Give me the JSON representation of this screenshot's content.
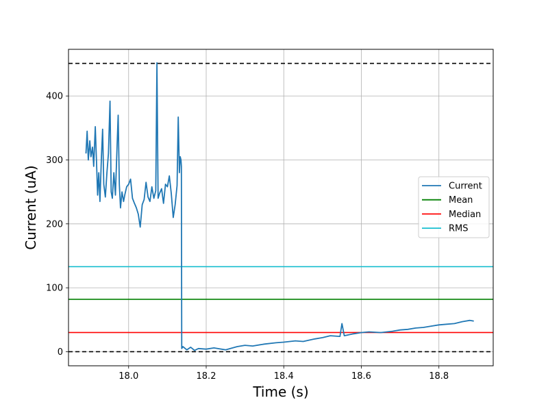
{
  "chart_data": {
    "type": "line",
    "xlabel": "Time (s)",
    "ylabel": "Current (uA)",
    "xlim": [
      17.845,
      18.94
    ],
    "ylim": [
      -22,
      473
    ],
    "xticks": [
      18.0,
      18.2,
      18.4,
      18.6,
      18.8
    ],
    "xtick_labels": [
      "18.0",
      "18.2",
      "18.4",
      "18.6",
      "18.8"
    ],
    "yticks": [
      0,
      100,
      200,
      300,
      400
    ],
    "ytick_labels": [
      "0",
      "100",
      "200",
      "300",
      "400"
    ],
    "grid": true,
    "legend_position": "center-right",
    "series": [
      {
        "name": "Current",
        "color": "#1f77b4",
        "style": "solid",
        "x": [
          17.89,
          17.893,
          17.896,
          17.9,
          17.903,
          17.907,
          17.91,
          17.914,
          17.917,
          17.92,
          17.923,
          17.926,
          17.93,
          17.933,
          17.936,
          17.94,
          17.944,
          17.948,
          17.952,
          17.955,
          17.958,
          17.962,
          17.966,
          17.97,
          17.973,
          17.976,
          17.979,
          17.983,
          17.987,
          17.99,
          17.995,
          18.0,
          18.005,
          18.01,
          18.015,
          18.02,
          18.025,
          18.03,
          18.035,
          18.04,
          18.045,
          18.05,
          18.055,
          18.06,
          18.065,
          18.07,
          18.073,
          18.076,
          18.08,
          18.085,
          18.09,
          18.095,
          18.1,
          18.105,
          18.11,
          18.115,
          18.12,
          18.125,
          18.128,
          18.131,
          18.133,
          18.135,
          18.136,
          18.137,
          18.14,
          18.15,
          18.16,
          18.17,
          18.18,
          18.2,
          18.22,
          18.25,
          18.28,
          18.3,
          18.32,
          18.35,
          18.38,
          18.4,
          18.43,
          18.45,
          18.48,
          18.5,
          18.52,
          18.545,
          18.55,
          18.556,
          18.58,
          18.6,
          18.62,
          18.65,
          18.68,
          18.7,
          18.72,
          18.74,
          18.76,
          18.78,
          18.8,
          18.82,
          18.84,
          18.86,
          18.88,
          18.89
        ],
        "y": [
          310,
          345,
          300,
          330,
          305,
          320,
          290,
          352,
          300,
          245,
          280,
          235,
          305,
          348,
          262,
          242,
          280,
          310,
          392,
          250,
          240,
          280,
          245,
          318,
          370,
          262,
          225,
          250,
          235,
          245,
          258,
          262,
          270,
          240,
          232,
          225,
          215,
          195,
          230,
          238,
          265,
          242,
          235,
          258,
          240,
          252,
          452,
          240,
          248,
          255,
          232,
          262,
          258,
          275,
          248,
          210,
          230,
          260,
          367,
          280,
          305,
          300,
          290,
          5,
          8,
          3,
          7,
          2,
          5,
          4,
          6,
          3,
          8,
          10,
          9,
          12,
          14,
          15,
          17,
          16,
          20,
          22,
          25,
          24,
          44,
          25,
          28,
          30,
          31,
          30,
          32,
          34,
          35,
          37,
          38,
          40,
          42,
          43,
          44,
          47,
          49,
          48
        ]
      },
      {
        "name": "Mean",
        "color": "#008000",
        "style": "solid",
        "y": 82
      },
      {
        "name": "Median",
        "color": "#ff0000",
        "style": "solid",
        "y": 30
      },
      {
        "name": "RMS",
        "color": "#17becf",
        "style": "solid",
        "y": 133
      }
    ],
    "reference_lines": [
      {
        "y": 451,
        "color": "#000000",
        "style": "dashed"
      },
      {
        "y": 0,
        "color": "#000000",
        "style": "dashed"
      }
    ]
  }
}
